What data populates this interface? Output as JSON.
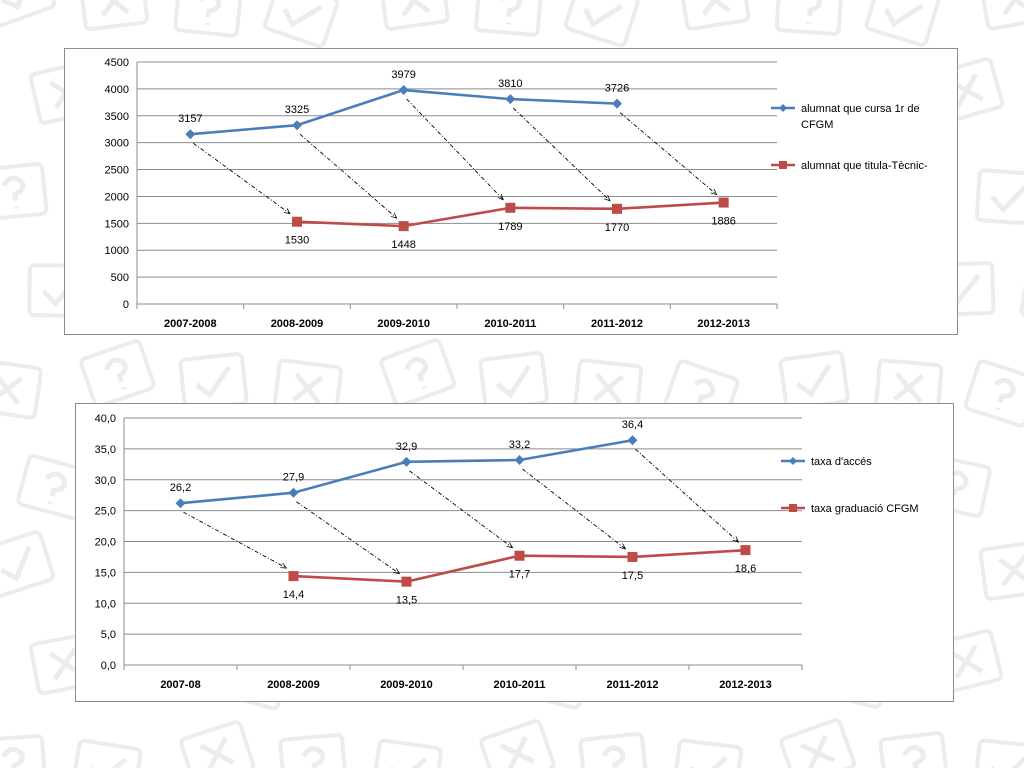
{
  "colors": {
    "series_a": "#4a7ebb",
    "series_b": "#be4b48",
    "grid": "#8c8c8c",
    "arrow": "#000000"
  },
  "chart_data": [
    {
      "type": "line",
      "title": "",
      "xlabel": "",
      "ylabel": "",
      "categories": [
        "2007-2008",
        "2008-2009",
        "2009-2010",
        "2010-2011",
        "2011-2012",
        "2012-2013"
      ],
      "ylim": [
        0,
        4500
      ],
      "yticks": [
        "0",
        "500",
        "1000",
        "1500",
        "2000",
        "2500",
        "3000",
        "3500",
        "4000",
        "4500"
      ],
      "grid": true,
      "legend_position": "right",
      "series": [
        {
          "name": "alumnat que cursa 1r de CFGM",
          "name_lines": [
            "alumnat que cursa 1r de",
            "CFGM"
          ],
          "marker": "diamond",
          "values": [
            3157,
            3325,
            3979,
            3810,
            3726,
            null
          ],
          "labels": [
            "3157",
            "3325",
            "3979",
            "3810",
            "3726",
            null
          ]
        },
        {
          "name": "alumnat que titula-Tècnic-",
          "name_lines": [
            "alumnat que titula-Tècnic-"
          ],
          "marker": "square",
          "values": [
            null,
            1530,
            1448,
            1789,
            1770,
            1886
          ],
          "labels": [
            null,
            "1530",
            "1448",
            "1789",
            "1770",
            "1886"
          ]
        }
      ],
      "annotations": "dotted arrows link each first-year value to the graduation value of the following year"
    },
    {
      "type": "line",
      "title": "",
      "xlabel": "",
      "ylabel": "",
      "categories": [
        "2007-08",
        "2008-2009",
        "2009-2010",
        "2010-2011",
        "2011-2012",
        "2012-2013"
      ],
      "ylim": [
        0,
        40
      ],
      "yticks": [
        "0,0",
        "5,0",
        "10,0",
        "15,0",
        "20,0",
        "25,0",
        "30,0",
        "35,0",
        "40,0"
      ],
      "grid": true,
      "legend_position": "right",
      "series": [
        {
          "name": "taxa d'accés",
          "name_lines": [
            "taxa d'accés"
          ],
          "marker": "diamond",
          "values": [
            26.2,
            27.9,
            32.9,
            33.2,
            36.4,
            null
          ],
          "labels": [
            "26,2",
            "27,9",
            "32,9",
            "33,2",
            "36,4",
            null
          ]
        },
        {
          "name": "taxa graduació CFGM",
          "name_lines": [
            "taxa graduació CFGM"
          ],
          "marker": "square",
          "values": [
            null,
            14.4,
            13.5,
            17.7,
            17.5,
            18.6
          ],
          "labels": [
            null,
            "14,4",
            "13,5",
            "17,7",
            "17,5",
            "18,6"
          ]
        }
      ],
      "annotations": "dotted arrows link each access-rate value to the graduation rate of the following year"
    }
  ]
}
